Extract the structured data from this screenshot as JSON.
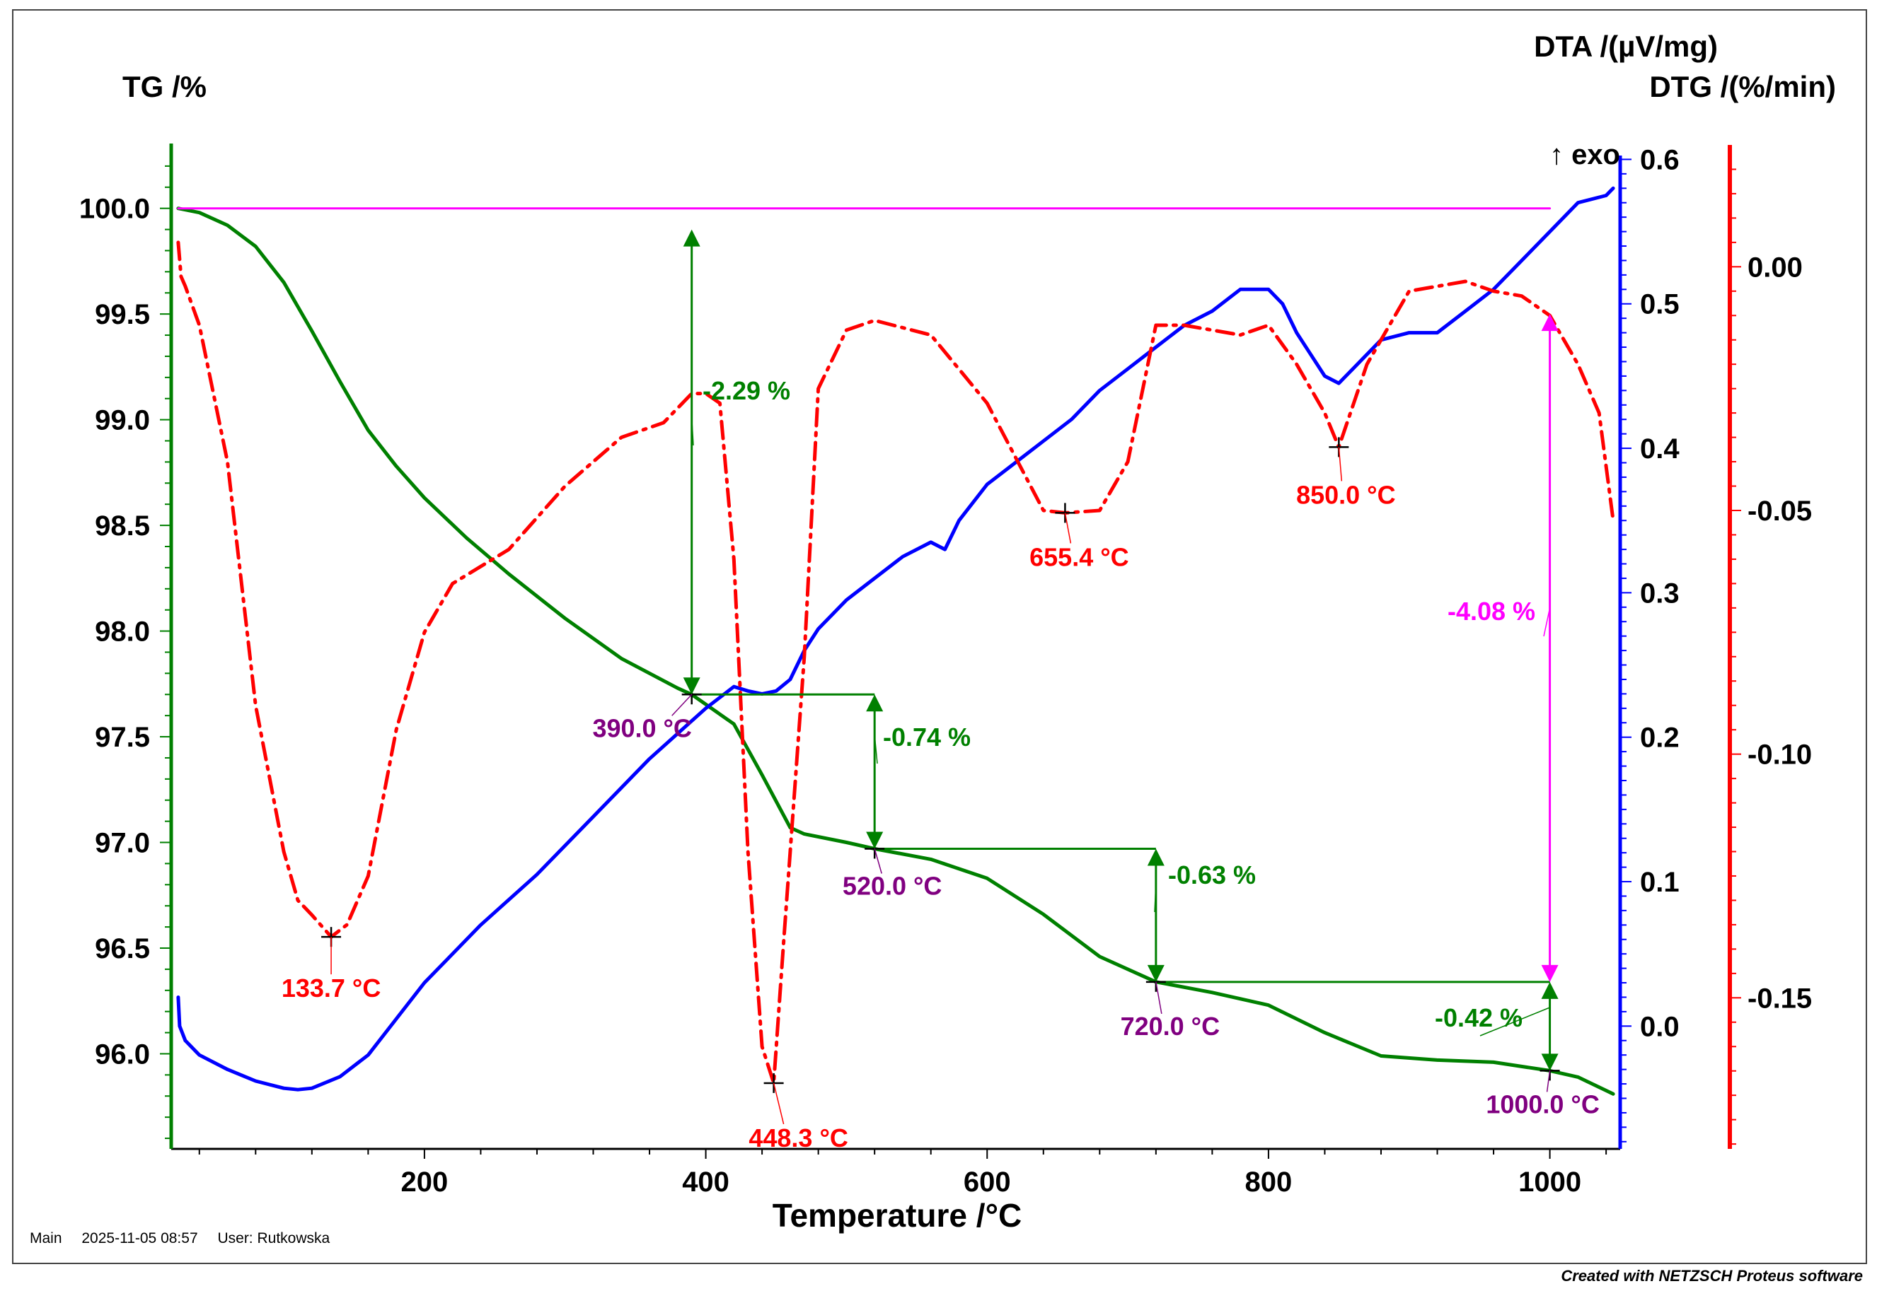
{
  "chart_data": {
    "type": "line",
    "xlabel": "Temperature /°C",
    "xlim": [
      20,
      1050
    ],
    "x_ticks": [
      200,
      400,
      600,
      800,
      1000
    ],
    "exo_label": "↑ exo",
    "axes": {
      "tg": {
        "label": "TG /%",
        "color": "#008000",
        "ylim": [
          95.55,
          100.3
        ],
        "ticks": [
          "100.0",
          "99.5",
          "99.0",
          "98.5",
          "98.0",
          "97.5",
          "97.0",
          "96.5",
          "96.0"
        ]
      },
      "dta": {
        "label": "DTA /(µV/mg)",
        "color": "#0000ff",
        "ylim": [
          -0.085,
          0.61
        ],
        "ticks": [
          "0.6",
          "0.5",
          "0.4",
          "0.3",
          "0.2",
          "0.1",
          "0.0"
        ]
      },
      "dtg": {
        "label": "DTG /(%/min)",
        "color": "#ff0000",
        "ylim": [
          -0.181,
          0.025
        ],
        "ticks": [
          "0.00",
          "-0.05",
          "-0.10",
          "-0.15"
        ]
      }
    },
    "series": [
      {
        "name": "TG",
        "axis": "tg",
        "color": "#008000",
        "style": "solid",
        "x": [
          25,
          40,
          60,
          80,
          100,
          120,
          140,
          160,
          180,
          200,
          230,
          260,
          300,
          340,
          380,
          390,
          420,
          440,
          460,
          470,
          500,
          520,
          560,
          600,
          640,
          680,
          720,
          760,
          800,
          840,
          880,
          920,
          960,
          1000,
          1020,
          1045
        ],
        "y": [
          100.0,
          99.98,
          99.92,
          99.82,
          99.65,
          99.42,
          99.18,
          98.95,
          98.78,
          98.63,
          98.44,
          98.27,
          98.06,
          97.87,
          97.73,
          97.7,
          97.56,
          97.32,
          97.07,
          97.04,
          97.0,
          96.97,
          96.92,
          96.83,
          96.66,
          96.46,
          96.34,
          96.29,
          96.23,
          96.1,
          95.99,
          95.97,
          95.96,
          95.92,
          95.89,
          95.81
        ]
      },
      {
        "name": "DTA",
        "axis": "dta",
        "color": "#0000ff",
        "style": "solid",
        "x": [
          25,
          26,
          30,
          40,
          60,
          80,
          100,
          110,
          120,
          140,
          160,
          180,
          200,
          240,
          280,
          320,
          360,
          400,
          420,
          430,
          440,
          450,
          460,
          470,
          480,
          500,
          520,
          540,
          560,
          570,
          580,
          600,
          620,
          640,
          660,
          680,
          700,
          720,
          740,
          760,
          780,
          800,
          810,
          820,
          830,
          840,
          850,
          860,
          880,
          900,
          920,
          940,
          960,
          980,
          1000,
          1020,
          1040,
          1045
        ],
        "y": [
          0.02,
          0.0,
          -0.01,
          -0.02,
          -0.03,
          -0.038,
          -0.043,
          -0.044,
          -0.043,
          -0.035,
          -0.02,
          0.005,
          0.03,
          0.07,
          0.105,
          0.145,
          0.185,
          0.22,
          0.235,
          0.232,
          0.23,
          0.232,
          0.24,
          0.26,
          0.275,
          0.295,
          0.31,
          0.325,
          0.335,
          0.33,
          0.35,
          0.375,
          0.39,
          0.405,
          0.42,
          0.44,
          0.455,
          0.47,
          0.485,
          0.495,
          0.51,
          0.51,
          0.5,
          0.48,
          0.465,
          0.45,
          0.445,
          0.455,
          0.475,
          0.48,
          0.48,
          0.495,
          0.51,
          0.53,
          0.55,
          0.57,
          0.575,
          0.58
        ]
      },
      {
        "name": "DTG",
        "axis": "dtg",
        "color": "#ff0000",
        "style": "dashdot",
        "x": [
          25,
          27,
          30,
          40,
          60,
          80,
          100,
          110,
          120,
          133.7,
          145,
          160,
          180,
          200,
          220,
          260,
          300,
          340,
          370,
          390,
          400,
          410,
          420,
          430,
          440,
          448.3,
          455,
          460,
          470,
          480,
          500,
          520,
          560,
          600,
          640,
          655.4,
          680,
          700,
          720,
          740,
          780,
          800,
          820,
          840,
          850,
          870,
          900,
          940,
          960,
          980,
          1000,
          1020,
          1035,
          1045
        ],
        "y": [
          0.005,
          -0.002,
          -0.004,
          -0.012,
          -0.04,
          -0.09,
          -0.12,
          -0.13,
          -0.133,
          -0.1375,
          -0.135,
          -0.125,
          -0.095,
          -0.075,
          -0.065,
          -0.058,
          -0.045,
          -0.035,
          -0.032,
          -0.026,
          -0.026,
          -0.028,
          -0.06,
          -0.12,
          -0.16,
          -0.1675,
          -0.14,
          -0.12,
          -0.08,
          -0.025,
          -0.013,
          -0.011,
          -0.014,
          -0.028,
          -0.05,
          -0.0505,
          -0.05,
          -0.04,
          -0.012,
          -0.012,
          -0.014,
          -0.012,
          -0.02,
          -0.03,
          -0.037,
          -0.02,
          -0.005,
          -0.003,
          -0.005,
          -0.006,
          -0.01,
          -0.02,
          -0.03,
          -0.052
        ]
      },
      {
        "name": "TG reference",
        "axis": "tg",
        "color": "#ff00ff",
        "style": "solid",
        "x": [
          25,
          1000
        ],
        "y": [
          100.0,
          100.0
        ]
      }
    ],
    "peak_annotations": [
      {
        "text": "133.7 °C",
        "x": 133.7,
        "axis": "dtg",
        "y": -0.1375,
        "color": "#ff0000"
      },
      {
        "text": "448.3 °C",
        "x": 448.3,
        "axis": "dtg",
        "y": -0.1675,
        "color": "#ff0000"
      },
      {
        "text": "655.4 °C",
        "x": 655.4,
        "axis": "dtg",
        "y": -0.0505,
        "color": "#ff0000"
      },
      {
        "text": "850.0 °C",
        "x": 850.0,
        "axis": "dtg",
        "y": -0.037,
        "color": "#ff0000"
      }
    ],
    "temperature_markers": [
      {
        "text": "390.0 °C",
        "x": 390.0,
        "tg": 97.7,
        "color": "#800080"
      },
      {
        "text": "520.0 °C",
        "x": 520.0,
        "tg": 96.97,
        "color": "#800080"
      },
      {
        "text": "720.0 °C",
        "x": 720.0,
        "tg": 96.34,
        "color": "#800080"
      },
      {
        "text": "1000.0 °C",
        "x": 1000.0,
        "tg": 95.92,
        "color": "#800080"
      }
    ],
    "mass_steps": [
      {
        "text": "-2.29 %",
        "x": 390.0,
        "from": 99.9,
        "to": 97.7,
        "color": "#008000"
      },
      {
        "text": "-0.74 %",
        "x": 520.0,
        "from": 97.7,
        "to": 96.97,
        "color": "#008000"
      },
      {
        "text": "-0.63 %",
        "x": 720.0,
        "from": 96.97,
        "to": 96.34,
        "color": "#008000"
      },
      {
        "text": "-0.42 %",
        "x": 1000.0,
        "from": 96.34,
        "to": 95.92,
        "color": "#008000"
      },
      {
        "text": "-4.08 %",
        "x": 1000.0,
        "from": 99.5,
        "to": 96.34,
        "color": "#ff00ff"
      }
    ]
  },
  "footer": {
    "main": "Main",
    "timestamp": "2025-11-05 08:57",
    "user": "User: Rutkowska",
    "credit": "Created with NETZSCH Proteus software"
  }
}
